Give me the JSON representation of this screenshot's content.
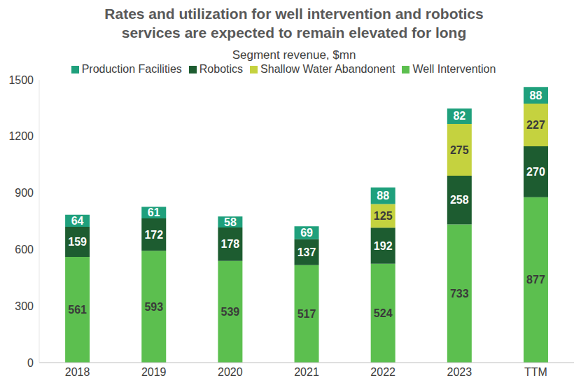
{
  "chart_data": {
    "type": "bar",
    "title": "Rates and utilization for well intervention and robotics services are expected to remain elevated for long",
    "subtitle": "Segment revenue, $mn",
    "categories": [
      "2018",
      "2019",
      "2020",
      "2021",
      "2022",
      "2023",
      "TTM"
    ],
    "series": [
      {
        "name": "Well Intervention",
        "color": "#5cbf4f",
        "values": [
          561,
          593,
          539,
          517,
          524,
          733,
          877
        ]
      },
      {
        "name": "Robotics",
        "color": "#1d5c30",
        "values": [
          159,
          172,
          178,
          137,
          192,
          258,
          270
        ]
      },
      {
        "name": "Shallow Water Abandonent",
        "color": "#c5d23f",
        "values": [
          null,
          null,
          null,
          null,
          125,
          275,
          227
        ]
      },
      {
        "name": "Production Facilities",
        "color": "#1fa07c",
        "values": [
          64,
          61,
          58,
          69,
          88,
          82,
          88
        ]
      }
    ],
    "ylim": [
      0,
      1500
    ],
    "yticks": [
      0,
      300,
      600,
      900,
      1200,
      1500
    ],
    "stacked": true,
    "data_labels": true,
    "legend": "top",
    "grid": false
  }
}
